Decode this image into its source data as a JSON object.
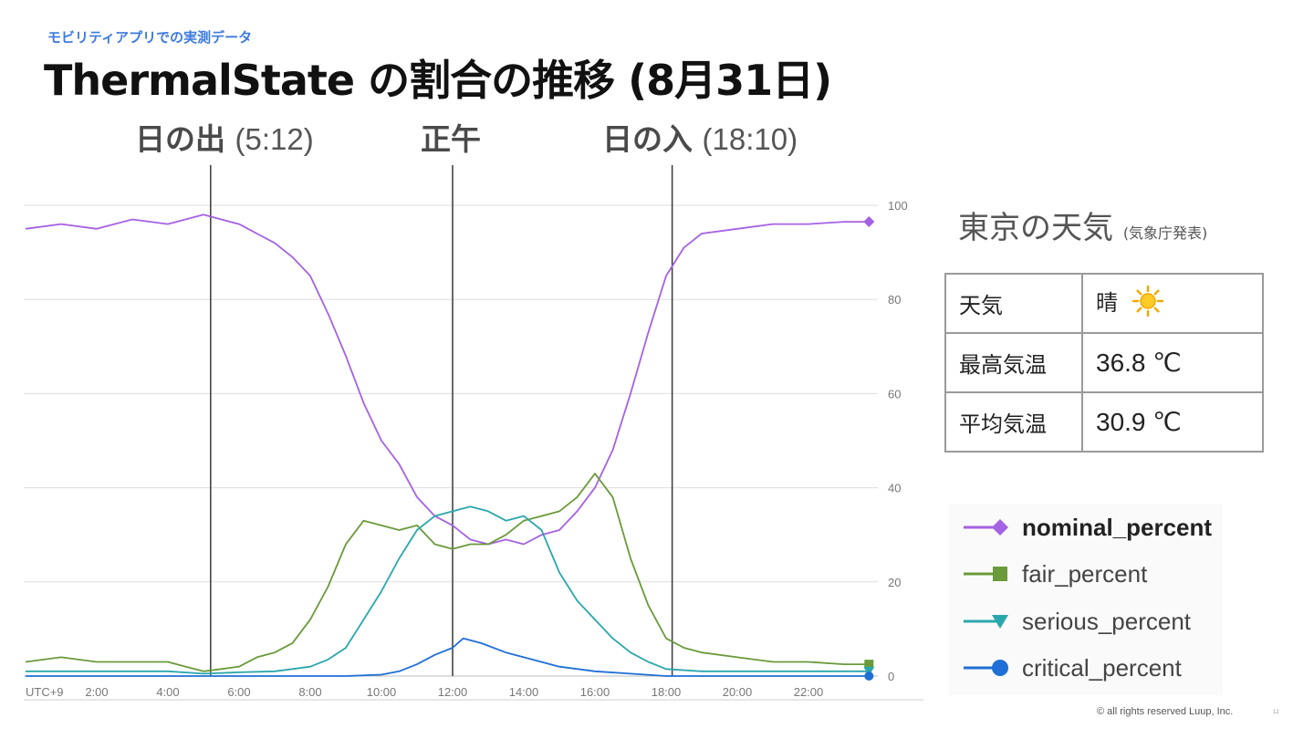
{
  "header": {
    "subtitle": "モビリティアプリでの実測データ",
    "title": "ThermalState の割合の推移 (8月31日)"
  },
  "markers": [
    {
      "label": "日の出",
      "time": "(5:12)",
      "hour": 5.2
    },
    {
      "label": "正午",
      "time": "",
      "hour": 12.0
    },
    {
      "label": "日の入",
      "time": "(18:10)",
      "hour": 18.17
    }
  ],
  "weather": {
    "title": "東京の天気",
    "source": "(気象庁発表)",
    "rows": [
      {
        "key": "天気",
        "value": "晴",
        "icon": "sun-icon"
      },
      {
        "key": "最高気温",
        "value": "36.8 ℃"
      },
      {
        "key": "平均気温",
        "value": "30.9 ℃"
      }
    ]
  },
  "chart_data": {
    "type": "line",
    "title": "",
    "xlabel": "",
    "ylabel": "",
    "xlim": [
      0,
      24
    ],
    "ylim": [
      0,
      100
    ],
    "x_ticks": [
      {
        "hour": 0,
        "label": "UTC+9"
      },
      {
        "hour": 2,
        "label": "2:00"
      },
      {
        "hour": 4,
        "label": "4:00"
      },
      {
        "hour": 6,
        "label": "6:00"
      },
      {
        "hour": 8,
        "label": "8:00"
      },
      {
        "hour": 10,
        "label": "10:00"
      },
      {
        "hour": 12,
        "label": "12:00"
      },
      {
        "hour": 14,
        "label": "14:00"
      },
      {
        "hour": 16,
        "label": "16:00"
      },
      {
        "hour": 18,
        "label": "18:00"
      },
      {
        "hour": 20,
        "label": "20:00"
      },
      {
        "hour": 22,
        "label": "22:00"
      }
    ],
    "y_ticks": [
      0,
      20,
      40,
      60,
      80,
      100
    ],
    "grid": true,
    "legend_position": "right",
    "series": [
      {
        "name": "nominal_percent",
        "color": "#a561e3",
        "marker": "diamond",
        "bold": true,
        "points": [
          [
            0,
            95
          ],
          [
            1,
            96
          ],
          [
            2,
            95
          ],
          [
            3,
            97
          ],
          [
            4,
            96
          ],
          [
            5,
            98
          ],
          [
            5.5,
            97
          ],
          [
            6,
            96
          ],
          [
            6.5,
            94
          ],
          [
            7,
            92
          ],
          [
            7.5,
            89
          ],
          [
            8,
            85
          ],
          [
            8.5,
            77
          ],
          [
            9,
            68
          ],
          [
            9.5,
            58
          ],
          [
            10,
            50
          ],
          [
            10.5,
            45
          ],
          [
            11,
            38
          ],
          [
            11.5,
            34
          ],
          [
            12,
            32
          ],
          [
            12.5,
            29
          ],
          [
            13,
            28
          ],
          [
            13.5,
            29
          ],
          [
            14,
            28
          ],
          [
            14.5,
            30
          ],
          [
            15,
            31
          ],
          [
            15.5,
            35
          ],
          [
            16,
            40
          ],
          [
            16.5,
            48
          ],
          [
            17,
            60
          ],
          [
            17.5,
            73
          ],
          [
            18,
            85
          ],
          [
            18.5,
            91
          ],
          [
            19,
            94
          ],
          [
            20,
            95
          ],
          [
            21,
            96
          ],
          [
            22,
            96
          ],
          [
            23,
            96.5
          ],
          [
            23.7,
            96.5
          ]
        ]
      },
      {
        "name": "fair_percent",
        "color": "#6a9a3a",
        "marker": "square",
        "points": [
          [
            0,
            3
          ],
          [
            1,
            4
          ],
          [
            2,
            3
          ],
          [
            3,
            3
          ],
          [
            4,
            3
          ],
          [
            4.5,
            2
          ],
          [
            5,
            1
          ],
          [
            5.5,
            1.5
          ],
          [
            6,
            2
          ],
          [
            6.5,
            4
          ],
          [
            7,
            5
          ],
          [
            7.5,
            7
          ],
          [
            8,
            12
          ],
          [
            8.5,
            19
          ],
          [
            9,
            28
          ],
          [
            9.5,
            33
          ],
          [
            10,
            32
          ],
          [
            10.5,
            31
          ],
          [
            11,
            32
          ],
          [
            11.5,
            28
          ],
          [
            12,
            27
          ],
          [
            12.5,
            28
          ],
          [
            13,
            28
          ],
          [
            13.5,
            30
          ],
          [
            14,
            33
          ],
          [
            14.5,
            34
          ],
          [
            15,
            35
          ],
          [
            15.5,
            38
          ],
          [
            16,
            43
          ],
          [
            16.5,
            38
          ],
          [
            17,
            25
          ],
          [
            17.5,
            15
          ],
          [
            18,
            8
          ],
          [
            18.5,
            6
          ],
          [
            19,
            5
          ],
          [
            20,
            4
          ],
          [
            21,
            3
          ],
          [
            22,
            3
          ],
          [
            23,
            2.5
          ],
          [
            23.7,
            2.5
          ]
        ]
      },
      {
        "name": "serious_percent",
        "color": "#2aa7ac",
        "marker": "triangle",
        "points": [
          [
            0,
            1
          ],
          [
            2,
            1
          ],
          [
            4,
            1
          ],
          [
            5,
            0.5
          ],
          [
            6,
            0.8
          ],
          [
            7,
            1
          ],
          [
            7.5,
            1.5
          ],
          [
            8,
            2
          ],
          [
            8.5,
            3.5
          ],
          [
            9,
            6
          ],
          [
            9.5,
            12
          ],
          [
            10,
            18
          ],
          [
            10.5,
            25
          ],
          [
            11,
            31
          ],
          [
            11.5,
            34
          ],
          [
            12,
            35
          ],
          [
            12.5,
            36
          ],
          [
            13,
            35
          ],
          [
            13.5,
            33
          ],
          [
            14,
            34
          ],
          [
            14.5,
            31
          ],
          [
            15,
            22
          ],
          [
            15.5,
            16
          ],
          [
            16,
            12
          ],
          [
            16.5,
            8
          ],
          [
            17,
            5
          ],
          [
            17.5,
            3
          ],
          [
            18,
            1.5
          ],
          [
            19,
            1
          ],
          [
            20,
            1
          ],
          [
            22,
            1
          ],
          [
            23.7,
            1
          ]
        ]
      },
      {
        "name": "critical_percent",
        "color": "#1f6fd6",
        "marker": "circle",
        "points": [
          [
            0,
            0
          ],
          [
            9,
            0
          ],
          [
            10,
            0.3
          ],
          [
            10.5,
            1
          ],
          [
            11,
            2.5
          ],
          [
            11.5,
            4.5
          ],
          [
            12,
            6
          ],
          [
            12.3,
            8
          ],
          [
            12.8,
            7
          ],
          [
            13.5,
            5
          ],
          [
            14,
            4
          ],
          [
            15,
            2
          ],
          [
            16,
            1
          ],
          [
            17,
            0.5
          ],
          [
            18,
            0
          ],
          [
            23.7,
            0
          ]
        ]
      }
    ]
  },
  "footer": {
    "copyright": "© all rights reserved Luup, Inc.",
    "page_number": "12"
  }
}
